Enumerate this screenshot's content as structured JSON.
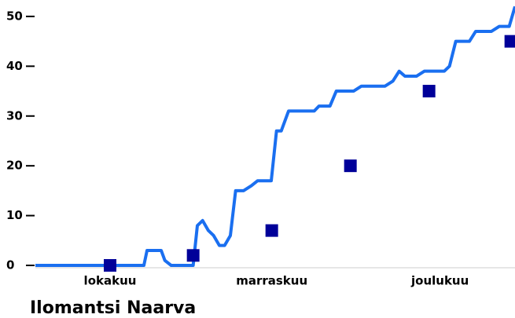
{
  "chart_data": {
    "type": "line",
    "title": "Ilomantsi Naarva",
    "xlim": [
      0,
      91.5
    ],
    "xticks": [
      {
        "value": 14.25,
        "label": "lokakuu"
      },
      {
        "value": 45.1,
        "label": "marraskuu"
      },
      {
        "value": 77.2,
        "label": "joulukuu"
      }
    ],
    "ylim": [
      0,
      53.3
    ],
    "yticks": [
      0,
      10,
      20,
      30,
      40,
      50
    ],
    "series": [
      {
        "type": "line",
        "color": "#1a6ff0",
        "x": [
          0,
          20.7,
          21.3,
          24,
          24.7,
          25.9,
          30.1,
          30.9,
          31.9,
          33,
          34,
          35.1,
          36.1,
          37.2,
          38.2,
          39.7,
          41.2,
          42.4,
          45,
          46,
          46.9,
          48.3,
          53.2,
          54.1,
          56.2,
          57.4,
          60.7,
          62.2,
          66.7,
          68.2,
          69.4,
          70.5,
          72.7,
          74.2,
          78,
          79,
          80.2,
          82.8,
          84,
          87,
          88.5,
          90.4,
          91.5
        ],
        "values": [
          0,
          0,
          3,
          3,
          1,
          0,
          0,
          8,
          9,
          7,
          6,
          4,
          4,
          6,
          15,
          15,
          16,
          17,
          17,
          27,
          27,
          31,
          31,
          32,
          32,
          35,
          35,
          36,
          36,
          37,
          39,
          38,
          38,
          39,
          39,
          40,
          45,
          45,
          47,
          47,
          48,
          48,
          52
        ]
      },
      {
        "type": "scatter",
        "color": "#000099",
        "x": [
          14.25,
          30.1,
          45.1,
          60.1,
          75.1,
          90.7
        ],
        "values": [
          0,
          2,
          7,
          20,
          35,
          45
        ]
      }
    ]
  }
}
